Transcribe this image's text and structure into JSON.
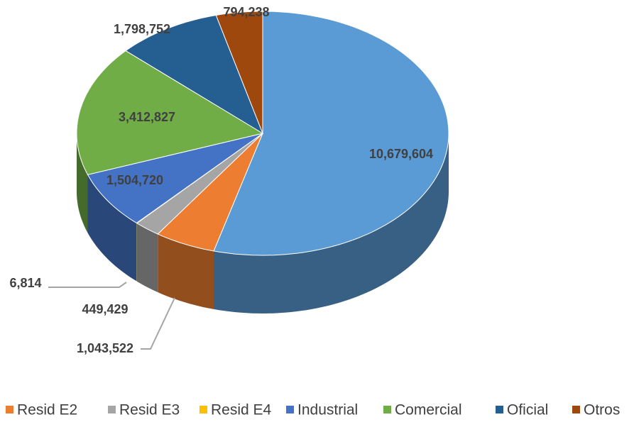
{
  "chart_data": {
    "type": "pie",
    "categories": [
      null,
      "Resid E2",
      "Resid E3",
      "Resid E4",
      "Industrial",
      "Comercial",
      "Oficial",
      "Otros"
    ],
    "values": [
      10679604,
      1043522,
      449429,
      6814,
      1504720,
      3412827,
      1798752,
      794238
    ],
    "value_labels": [
      "10,679,604",
      "1,043,522",
      "449,429",
      "6,814",
      "1,504,720",
      "3,412,827",
      "1,798,752",
      "794,238"
    ],
    "colors": [
      "#5b9bd5",
      "#ed7d31",
      "#a5a5a5",
      "#ffc000",
      "#4472c4",
      "#70ad47",
      "#255e91",
      "#9e480e"
    ],
    "legend": "bottom"
  }
}
